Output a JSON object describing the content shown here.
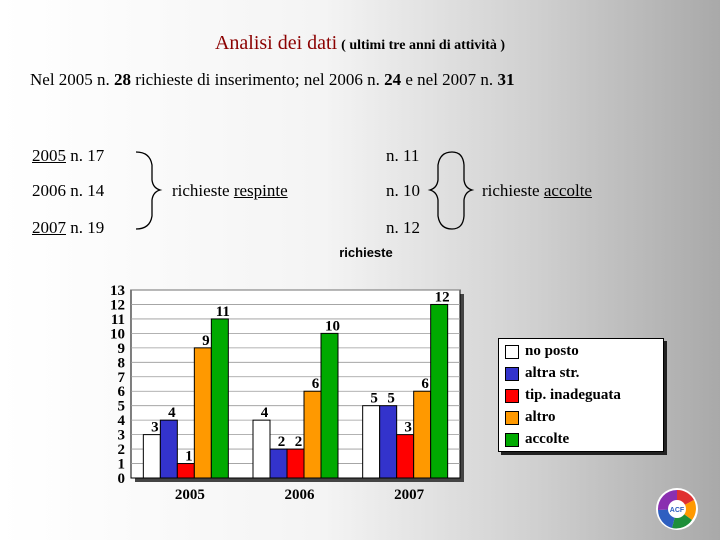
{
  "header": {
    "title_main": "Analisi dei dati",
    "title_sub": "( ultimi tre anni di attività )"
  },
  "summary": {
    "p1": "Nel 2005  n. ",
    "n2005": "28",
    "p2": " richieste di inserimento; nel 2006 n. ",
    "n2006": "24",
    "p3": " e nel 2007 n. ",
    "n2007": "31"
  },
  "respinte": {
    "rows": [
      {
        "year": "2005",
        "value": " n. 17"
      },
      {
        "year": "2006",
        "value": " n. 14"
      },
      {
        "year": "2007",
        "value": " n. 19"
      }
    ],
    "label_prefix": "richieste ",
    "label_word": "respinte"
  },
  "accolte": {
    "rows": [
      "n. 11",
      "n. 10",
      "n. 12"
    ],
    "label_prefix": "richieste ",
    "label_word": "accolte"
  },
  "chart_data": {
    "type": "bar",
    "title": "richieste",
    "categories": [
      "2005",
      "2006",
      "2007"
    ],
    "ylim": [
      0,
      13
    ],
    "yticks": [
      "0",
      "1",
      "2",
      "3",
      "4",
      "5",
      "6",
      "7",
      "8",
      "9",
      "10",
      "11",
      "12",
      "13"
    ],
    "legend_position": "right",
    "grid": true,
    "series": [
      {
        "name": "no posto",
        "color": "#ffffff",
        "values": [
          3,
          4,
          5
        ]
      },
      {
        "name": "altra str.",
        "color": "#3333cc",
        "values": [
          4,
          2,
          5
        ]
      },
      {
        "name": "tip. inadeguata",
        "color": "#ff0000",
        "values": [
          1,
          2,
          3
        ]
      },
      {
        "name": "altro",
        "color": "#ff9900",
        "values": [
          9,
          6,
          6
        ]
      },
      {
        "name": "accolte",
        "color": "#00aa00",
        "values": [
          11,
          10,
          12
        ]
      }
    ]
  },
  "logo": {
    "text": "ACF"
  }
}
